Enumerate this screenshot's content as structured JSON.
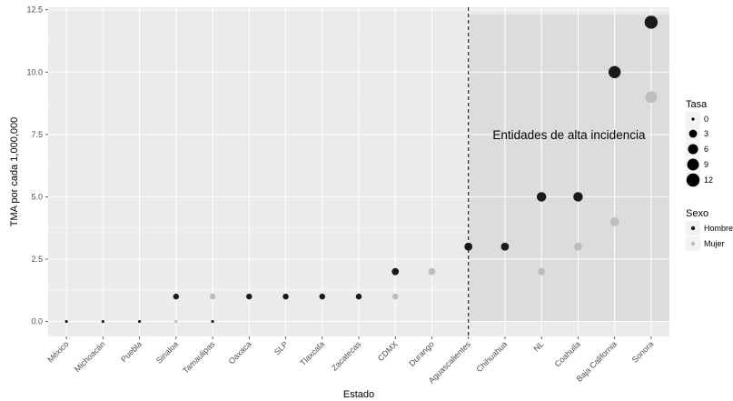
{
  "chart_data": {
    "type": "scatter",
    "title": "",
    "xlabel": "Estado",
    "ylabel": "TMA por cada 1,000,000",
    "ylim": [
      -0.6,
      12.6
    ],
    "yticks": [
      "0.0",
      "2.5",
      "5.0",
      "7.5",
      "10.0",
      "12.5"
    ],
    "ytick_values": [
      0,
      2.5,
      5,
      7.5,
      10,
      12.5
    ],
    "categories": [
      "México",
      "Michoacán",
      "Puebla",
      "Sinaloa",
      "Tamaulipas",
      "Oaxaca",
      "SLP",
      "Tlaxcala",
      "Zacatecas",
      "CDMX",
      "Durango",
      "Aguascalientes",
      "Chihuahua",
      "NL",
      "Coahuila",
      "Baja California",
      "Sonora"
    ],
    "series": [
      {
        "name": "Hombre",
        "color": "#1a1a1a",
        "values": [
          0,
          0,
          0,
          1,
          0,
          1,
          1,
          1,
          1,
          2,
          null,
          3,
          3,
          5,
          5,
          10,
          12
        ]
      },
      {
        "name": "Mujer",
        "color": "#bdbdbd",
        "values": [
          null,
          null,
          null,
          0,
          1,
          null,
          null,
          null,
          null,
          1,
          2,
          null,
          null,
          2,
          3,
          4,
          9
        ]
      }
    ],
    "size_variable": "Tasa",
    "size_legend": {
      "title": "Tasa",
      "breaks": [
        "0",
        "3",
        "6",
        "9",
        "12"
      ],
      "break_values": [
        0,
        3,
        6,
        9,
        12
      ]
    },
    "color_legend": {
      "title": "Sexo",
      "entries": [
        "Hombre",
        "Mujer"
      ]
    },
    "vline": {
      "category": "Aguascalientes",
      "style": "dashed"
    },
    "highlight_region": {
      "from_category": "Aguascalientes",
      "to_category": "Sonora",
      "ymin": 0,
      "ymax": 12.3
    },
    "annotation": {
      "text": "Entidades de alta incidencia",
      "x_category": "Coahuila",
      "y": 7.5
    },
    "grid": true,
    "legend_position": "right",
    "colors": {
      "panel_bg": "#ebebeb",
      "grid_major": "#ffffff",
      "highlight": "#dcdcdc",
      "hombre": "#1a1a1a",
      "mujer": "#bdbdbd"
    }
  }
}
